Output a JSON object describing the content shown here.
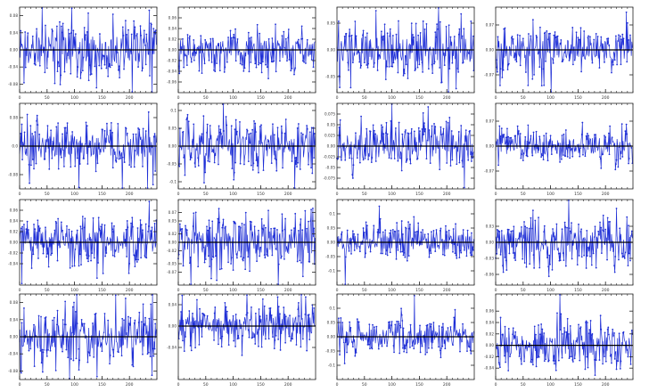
{
  "figure": {
    "rows": 4,
    "cols": 4,
    "n_points": 250,
    "colors": {
      "series": "#1f2fd6",
      "zero_line": "#000000",
      "frame": "#222222",
      "tick_label": "#333333"
    }
  },
  "chart_data": [
    {
      "type": "line",
      "ylim": [
        -0.1,
        0.1
      ],
      "yticks": [
        -0.08,
        -0.04,
        0.0,
        0.04,
        0.08
      ],
      "ytick_labels": [
        "-0.08",
        "-0.04",
        "0.00",
        "0.04",
        "0.08"
      ],
      "xlim": [
        0,
        250
      ],
      "xticks": [
        0,
        50,
        100,
        150,
        200
      ],
      "xtick_labels": [
        "0",
        "50",
        "100",
        "150",
        "200"
      ],
      "grid": false,
      "series": [
        {
          "seed": 11,
          "scale": 0.035
        }
      ]
    },
    {
      "type": "line",
      "ylim": [
        -0.08,
        0.08
      ],
      "yticks": [
        -0.06,
        -0.04,
        -0.02,
        0.0,
        0.02,
        0.04,
        0.06
      ],
      "ytick_labels": [
        "-0.06",
        "-0.04",
        "-0.02",
        "0.00",
        "0.02",
        "0.04",
        "0.06"
      ],
      "xlim": [
        0,
        250
      ],
      "xticks": [
        0,
        50,
        100,
        150,
        200
      ],
      "xtick_labels": [
        "0",
        "50",
        "100",
        "150",
        "200"
      ],
      "grid": false,
      "series": [
        {
          "seed": 12,
          "scale": 0.02
        }
      ]
    },
    {
      "type": "line",
      "ylim": [
        -0.08,
        0.08
      ],
      "yticks": [
        -0.05,
        0.0,
        0.05
      ],
      "ytick_labels": [
        "-0.05",
        "0.00",
        "0.05"
      ],
      "xlim": [
        0,
        250
      ],
      "xticks": [
        0,
        50,
        100,
        150,
        200
      ],
      "xtick_labels": [
        "0",
        "50",
        "100",
        "150",
        "200"
      ],
      "grid": false,
      "series": [
        {
          "seed": 13,
          "scale": 0.025
        }
      ]
    },
    {
      "type": "line",
      "ylim": [
        -0.12,
        0.12
      ],
      "yticks": [
        -0.07,
        0.0,
        0.07
      ],
      "ytick_labels": [
        "-0.07",
        "0.00",
        "0.07"
      ],
      "xlim": [
        0,
        250
      ],
      "xticks": [
        0,
        50,
        100,
        150,
        200
      ],
      "xtick_labels": [
        "0",
        "50",
        "100",
        "150",
        "200"
      ],
      "grid": false,
      "series": [
        {
          "seed": 14,
          "scale": 0.03
        }
      ]
    },
    {
      "type": "line",
      "ylim": [
        -0.12,
        0.12
      ],
      "yticks": [
        -0.08,
        0.0,
        0.08
      ],
      "ytick_labels": [
        "-0.08",
        "0.0",
        "0.08"
      ],
      "xlim": [
        0,
        250
      ],
      "xticks": [
        0,
        50,
        100,
        150,
        200
      ],
      "xtick_labels": [
        "0",
        "50",
        "100",
        "150",
        "200"
      ],
      "grid": false,
      "series": [
        {
          "seed": 21,
          "scale": 0.035
        }
      ]
    },
    {
      "type": "line",
      "ylim": [
        -0.12,
        0.12
      ],
      "yticks": [
        -0.1,
        -0.05,
        0.0,
        0.05,
        0.1
      ],
      "ytick_labels": [
        "-0.1",
        "-0.05",
        "0.00",
        "0.05",
        "0.1"
      ],
      "xlim": [
        0,
        250
      ],
      "xticks": [
        0,
        50,
        100,
        150,
        200
      ],
      "xtick_labels": [
        "0",
        "50",
        "100",
        "150",
        "200"
      ],
      "grid": false,
      "series": [
        {
          "seed": 22,
          "scale": 0.035
        }
      ]
    },
    {
      "type": "line",
      "ylim": [
        -0.1,
        0.1
      ],
      "yticks": [
        -0.075,
        -0.05,
        -0.025,
        0.0,
        0.025,
        0.05,
        0.075
      ],
      "ytick_labels": [
        "-0.075",
        "-0.05",
        "-0.025",
        "0.00",
        "0.025",
        "0.05",
        "0.075"
      ],
      "xlim": [
        0,
        250
      ],
      "xticks": [
        0,
        50,
        100,
        150,
        200
      ],
      "xtick_labels": [
        "0",
        "50",
        "100",
        "150",
        "200"
      ],
      "grid": false,
      "series": [
        {
          "seed": 23,
          "scale": 0.03
        }
      ]
    },
    {
      "type": "line",
      "ylim": [
        -0.12,
        0.12
      ],
      "yticks": [
        -0.07,
        0.0,
        0.07
      ],
      "ytick_labels": [
        "-0.07",
        "0.00",
        "0.07"
      ],
      "xlim": [
        0,
        250
      ],
      "xticks": [
        0,
        50,
        100,
        150,
        200
      ],
      "xtick_labels": [
        "0",
        "50",
        "100",
        "150",
        "200"
      ],
      "grid": false,
      "series": [
        {
          "seed": 24,
          "scale": 0.025
        }
      ]
    },
    {
      "type": "line",
      "ylim": [
        -0.08,
        0.08
      ],
      "yticks": [
        -0.04,
        -0.02,
        0.0,
        0.02,
        0.04,
        0.06
      ],
      "ytick_labels": [
        "-0.04",
        "-0.02",
        "0.00",
        "0.02",
        "0.04",
        "0.06"
      ],
      "xlim": [
        0,
        250
      ],
      "xticks": [
        0,
        50,
        100,
        150,
        200
      ],
      "xtick_labels": [
        "0",
        "50",
        "100",
        "150",
        "200"
      ],
      "grid": false,
      "series": [
        {
          "seed": 31,
          "scale": 0.022
        }
      ]
    },
    {
      "type": "line",
      "ylim": [
        -0.1,
        0.1
      ],
      "yticks": [
        -0.07,
        -0.05,
        -0.02,
        0.0,
        0.02,
        0.05,
        0.07
      ],
      "ytick_labels": [
        "-0.07",
        "-0.05",
        "-0.02",
        "0.00",
        "0.02",
        "0.05",
        "0.07"
      ],
      "xlim": [
        0,
        250
      ],
      "xticks": [
        0,
        50,
        100,
        150,
        200
      ],
      "xtick_labels": [
        "0",
        "50",
        "100",
        "150",
        "200"
      ],
      "grid": false,
      "series": [
        {
          "seed": 32,
          "scale": 0.03
        }
      ]
    },
    {
      "type": "line",
      "ylim": [
        -0.15,
        0.15
      ],
      "yticks": [
        -0.1,
        -0.05,
        0.0,
        0.05,
        0.1
      ],
      "ytick_labels": [
        "-0.1",
        "-0.05",
        "0.00",
        "0.05",
        "0.1"
      ],
      "xlim": [
        0,
        250
      ],
      "xticks": [
        0,
        50,
        100,
        150,
        200
      ],
      "xtick_labels": [
        "0",
        "50",
        "100",
        "150",
        "200"
      ],
      "grid": false,
      "series": [
        {
          "seed": 33,
          "scale": 0.03
        }
      ]
    },
    {
      "type": "line",
      "ylim": [
        -0.08,
        0.08
      ],
      "yticks": [
        -0.06,
        -0.03,
        0.0,
        0.03
      ],
      "ytick_labels": [
        "-0.06",
        "-0.03",
        "0.00",
        "0.03"
      ],
      "xlim": [
        0,
        250
      ],
      "xticks": [
        0,
        50,
        100,
        150,
        200
      ],
      "xtick_labels": [
        "0",
        "50",
        "100",
        "150",
        "200"
      ],
      "grid": false,
      "series": [
        {
          "seed": 34,
          "scale": 0.022
        }
      ]
    },
    {
      "type": "line",
      "ylim": [
        -0.1,
        0.1
      ],
      "yticks": [
        -0.08,
        -0.04,
        0.0,
        0.04,
        0.08
      ],
      "ytick_labels": [
        "-0.08",
        "-0.04",
        "0.00",
        "0.04",
        "0.08"
      ],
      "xlim": [
        0,
        250
      ],
      "xticks": [
        0,
        50,
        100,
        150,
        200
      ],
      "xtick_labels": [
        "0",
        "50",
        "100",
        "150",
        "200"
      ],
      "grid": false,
      "series": [
        {
          "seed": 41,
          "scale": 0.03
        }
      ]
    },
    {
      "type": "line",
      "ylim": [
        -0.1,
        0.06
      ],
      "yticks": [
        -0.04,
        0.0,
        0.04
      ],
      "ytick_labels": [
        "-0.04",
        "0.00",
        "0.04"
      ],
      "xlim": [
        0,
        250
      ],
      "xticks": [
        0,
        50,
        100,
        150,
        200
      ],
      "xtick_labels": [
        "0",
        "50",
        "100",
        "150",
        "200"
      ],
      "grid": false,
      "series": [
        {
          "seed": 42,
          "scale": 0.02
        }
      ]
    },
    {
      "type": "line",
      "ylim": [
        -0.15,
        0.15
      ],
      "yticks": [
        -0.1,
        -0.05,
        0.0,
        0.05,
        0.1
      ],
      "ytick_labels": [
        "-0.1",
        "-0.05",
        "0.00",
        "0.05",
        "0.1"
      ],
      "xlim": [
        0,
        250
      ],
      "xticks": [
        0,
        50,
        100,
        150,
        200
      ],
      "xtick_labels": [
        "0",
        "50",
        "100",
        "150",
        "200"
      ],
      "grid": false,
      "series": [
        {
          "seed": 43,
          "scale": 0.03
        }
      ]
    },
    {
      "type": "line",
      "ylim": [
        -0.06,
        0.09
      ],
      "yticks": [
        -0.04,
        -0.02,
        0.0,
        0.02,
        0.04,
        0.06
      ],
      "ytick_labels": [
        "-0.04",
        "-0.02",
        "0.00",
        "0.02",
        "0.04",
        "0.06"
      ],
      "xlim": [
        0,
        250
      ],
      "xticks": [
        0,
        50,
        100,
        150,
        200
      ],
      "xtick_labels": [
        "0",
        "50",
        "100",
        "150",
        "200"
      ],
      "grid": false,
      "series": [
        {
          "seed": 44,
          "scale": 0.02
        }
      ]
    }
  ]
}
